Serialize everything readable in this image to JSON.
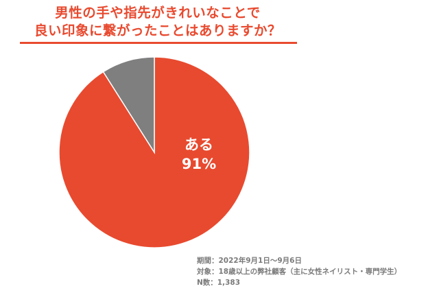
{
  "title_lines": [
    "男性の手や指先がきれいなことで",
    "良い印象に繋がったことはありますか？"
  ],
  "colors": {
    "accent": "#e84a2f",
    "slice_main": "#e84a2f",
    "slice_other": "#7f7f7f",
    "notes_text": "#7a7a7a"
  },
  "chart_data": {
    "type": "pie",
    "slices": [
      {
        "label": "ある",
        "value": 91,
        "value_label": "91%",
        "color": "#e84a2f"
      },
      {
        "label": "",
        "value": 9,
        "value_label": "",
        "color": "#7f7f7f"
      }
    ]
  },
  "notes": {
    "period": "期間：2022年9月1日〜9月6日",
    "target": "対象：18歳以上の弊社顧客（主に女性ネイリスト・専門学生）",
    "n": "N数：1,383"
  }
}
